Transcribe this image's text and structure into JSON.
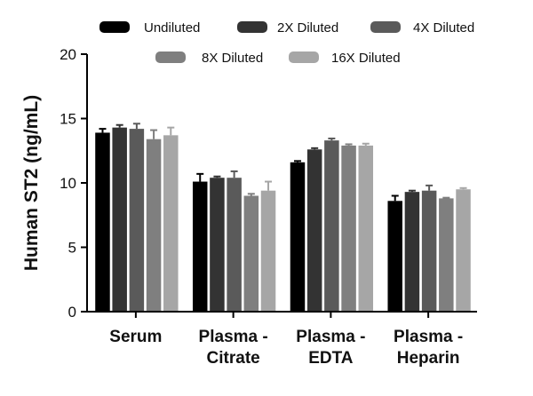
{
  "chart_data": {
    "type": "bar",
    "title": "",
    "xlabel": "",
    "ylabel": "Human ST2 (ng/mL)",
    "ylim": [
      0,
      20
    ],
    "yticks": [
      0,
      5,
      10,
      15,
      20
    ],
    "grid": false,
    "legend_position": "top",
    "categories": [
      [
        "Serum"
      ],
      [
        "Plasma -",
        "Citrate"
      ],
      [
        "Plasma -",
        "EDTA"
      ],
      [
        "Plasma -",
        "Heparin"
      ]
    ],
    "series": [
      {
        "name": "Undiluted",
        "color": "#000000",
        "values": [
          13.9,
          10.1,
          11.6,
          8.6
        ],
        "errors": [
          0.3,
          0.6,
          0.1,
          0.4
        ]
      },
      {
        "name": "2X Diluted",
        "color": "#333333",
        "values": [
          14.3,
          10.4,
          12.6,
          9.3
        ],
        "errors": [
          0.2,
          0.1,
          0.1,
          0.1
        ]
      },
      {
        "name": "4X Diluted",
        "color": "#5a5a5a",
        "values": [
          14.2,
          10.4,
          13.3,
          9.4
        ],
        "errors": [
          0.4,
          0.5,
          0.15,
          0.4
        ]
      },
      {
        "name": "8X Diluted",
        "color": "#7f7f7f",
        "values": [
          13.4,
          9.0,
          12.9,
          8.8
        ],
        "errors": [
          0.7,
          0.15,
          0.1,
          0.05
        ]
      },
      {
        "name": "16X Diluted",
        "color": "#a6a6a6",
        "values": [
          13.7,
          9.4,
          12.9,
          9.5
        ],
        "errors": [
          0.6,
          0.7,
          0.15,
          0.1
        ]
      }
    ]
  }
}
